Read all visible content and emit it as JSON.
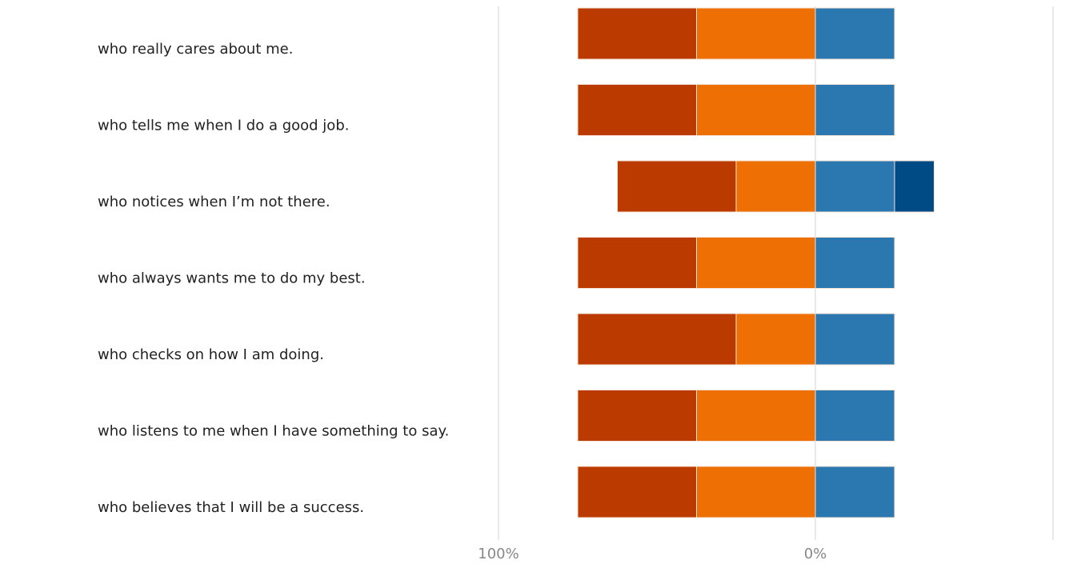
{
  "chart_data": {
    "type": "diverging_bar",
    "categories": [
      "who really cares about me.",
      "who tells me when I do a good job.",
      "who notices when I’m not there.",
      "who always wants me to do my best.",
      "who checks on how I am doing.",
      "who listens to me when I have something to say.",
      "who believes that I will be a success."
    ],
    "series": [
      {
        "color": "#ee7004",
        "values": [
          -37.5,
          -37.5,
          -25,
          -37.5,
          -25,
          -37.5,
          -37.5
        ]
      },
      {
        "color": "#bb3a00",
        "values": [
          -37.5,
          -37.5,
          -37.5,
          -37.5,
          -50,
          -37.5,
          -37.5
        ]
      },
      {
        "color": "#2b77b0",
        "values": [
          25,
          25,
          25,
          25,
          25,
          25,
          25
        ]
      },
      {
        "color": "#004a85",
        "values": [
          0,
          0,
          12.5,
          0,
          0,
          0,
          0
        ]
      }
    ],
    "xlim": [
      -100,
      75
    ],
    "xticks": [
      {
        "value": -100,
        "label": "100%"
      },
      {
        "value": 0,
        "label": "0%"
      }
    ],
    "grid": true
  }
}
